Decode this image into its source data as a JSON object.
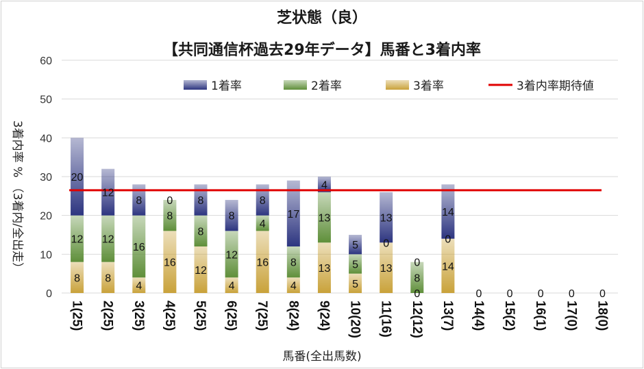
{
  "chart_data": {
    "type": "bar",
    "stacked": true,
    "title": "芝状態（良）",
    "subtitle": "【共同通信杯過去29年データ】馬番と3着内率",
    "xlabel": "馬番(全出馬数)",
    "ylabel": "3着内率 %  （3着内/全出走）",
    "ylim": [
      0,
      60
    ],
    "yticks": [
      0,
      10,
      20,
      30,
      40,
      50,
      60
    ],
    "grid": true,
    "legend_position": "top",
    "categories": [
      "1(25)",
      "2(25)",
      "3(25)",
      "4(25)",
      "5(25)",
      "6(25)",
      "7(25)",
      "8(24)",
      "9(24)",
      "10(20)",
      "11(16)",
      "12(12)",
      "13(7)",
      "14(4)",
      "15(2)",
      "16(1)",
      "17(0)",
      "18(0)"
    ],
    "series": [
      {
        "name": "3着率",
        "color": "#c9a23a",
        "values": [
          8,
          8,
          4,
          16,
          12,
          4,
          16,
          4,
          13,
          5,
          13,
          0,
          14,
          0,
          0,
          0,
          0,
          0
        ]
      },
      {
        "name": "2着率",
        "color": "#5f8f3a",
        "values": [
          12,
          12,
          16,
          8,
          8,
          12,
          4,
          8,
          13,
          5,
          0,
          8,
          0,
          0,
          0,
          0,
          0,
          0
        ]
      },
      {
        "name": "1着率",
        "color": "#2d3580",
        "values": [
          20,
          12,
          8,
          0,
          8,
          8,
          8,
          17,
          4,
          5,
          13,
          0,
          14,
          0,
          0,
          0,
          0,
          0
        ]
      }
    ],
    "data_label_rows": [
      [
        "8",
        "8",
        "4",
        "16",
        "12",
        "4",
        "16",
        "4",
        "13",
        "5",
        "13",
        "0",
        "14",
        "0",
        "0",
        "0",
        "0",
        "0"
      ],
      [
        "12",
        "12",
        "16",
        "8",
        "8",
        "12",
        "4",
        "8",
        "13",
        "5",
        "0",
        "8",
        "0",
        "",
        "",
        "",
        "",
        ""
      ],
      [
        "20",
        "12",
        "8",
        "0",
        "8",
        "8",
        "8",
        "17",
        "4",
        "5",
        "13",
        "0",
        "14",
        "",
        "",
        "",
        "",
        ""
      ]
    ],
    "reference_line": {
      "name": "3着内率期待値",
      "value": 26.5,
      "color": "#e00000"
    }
  }
}
